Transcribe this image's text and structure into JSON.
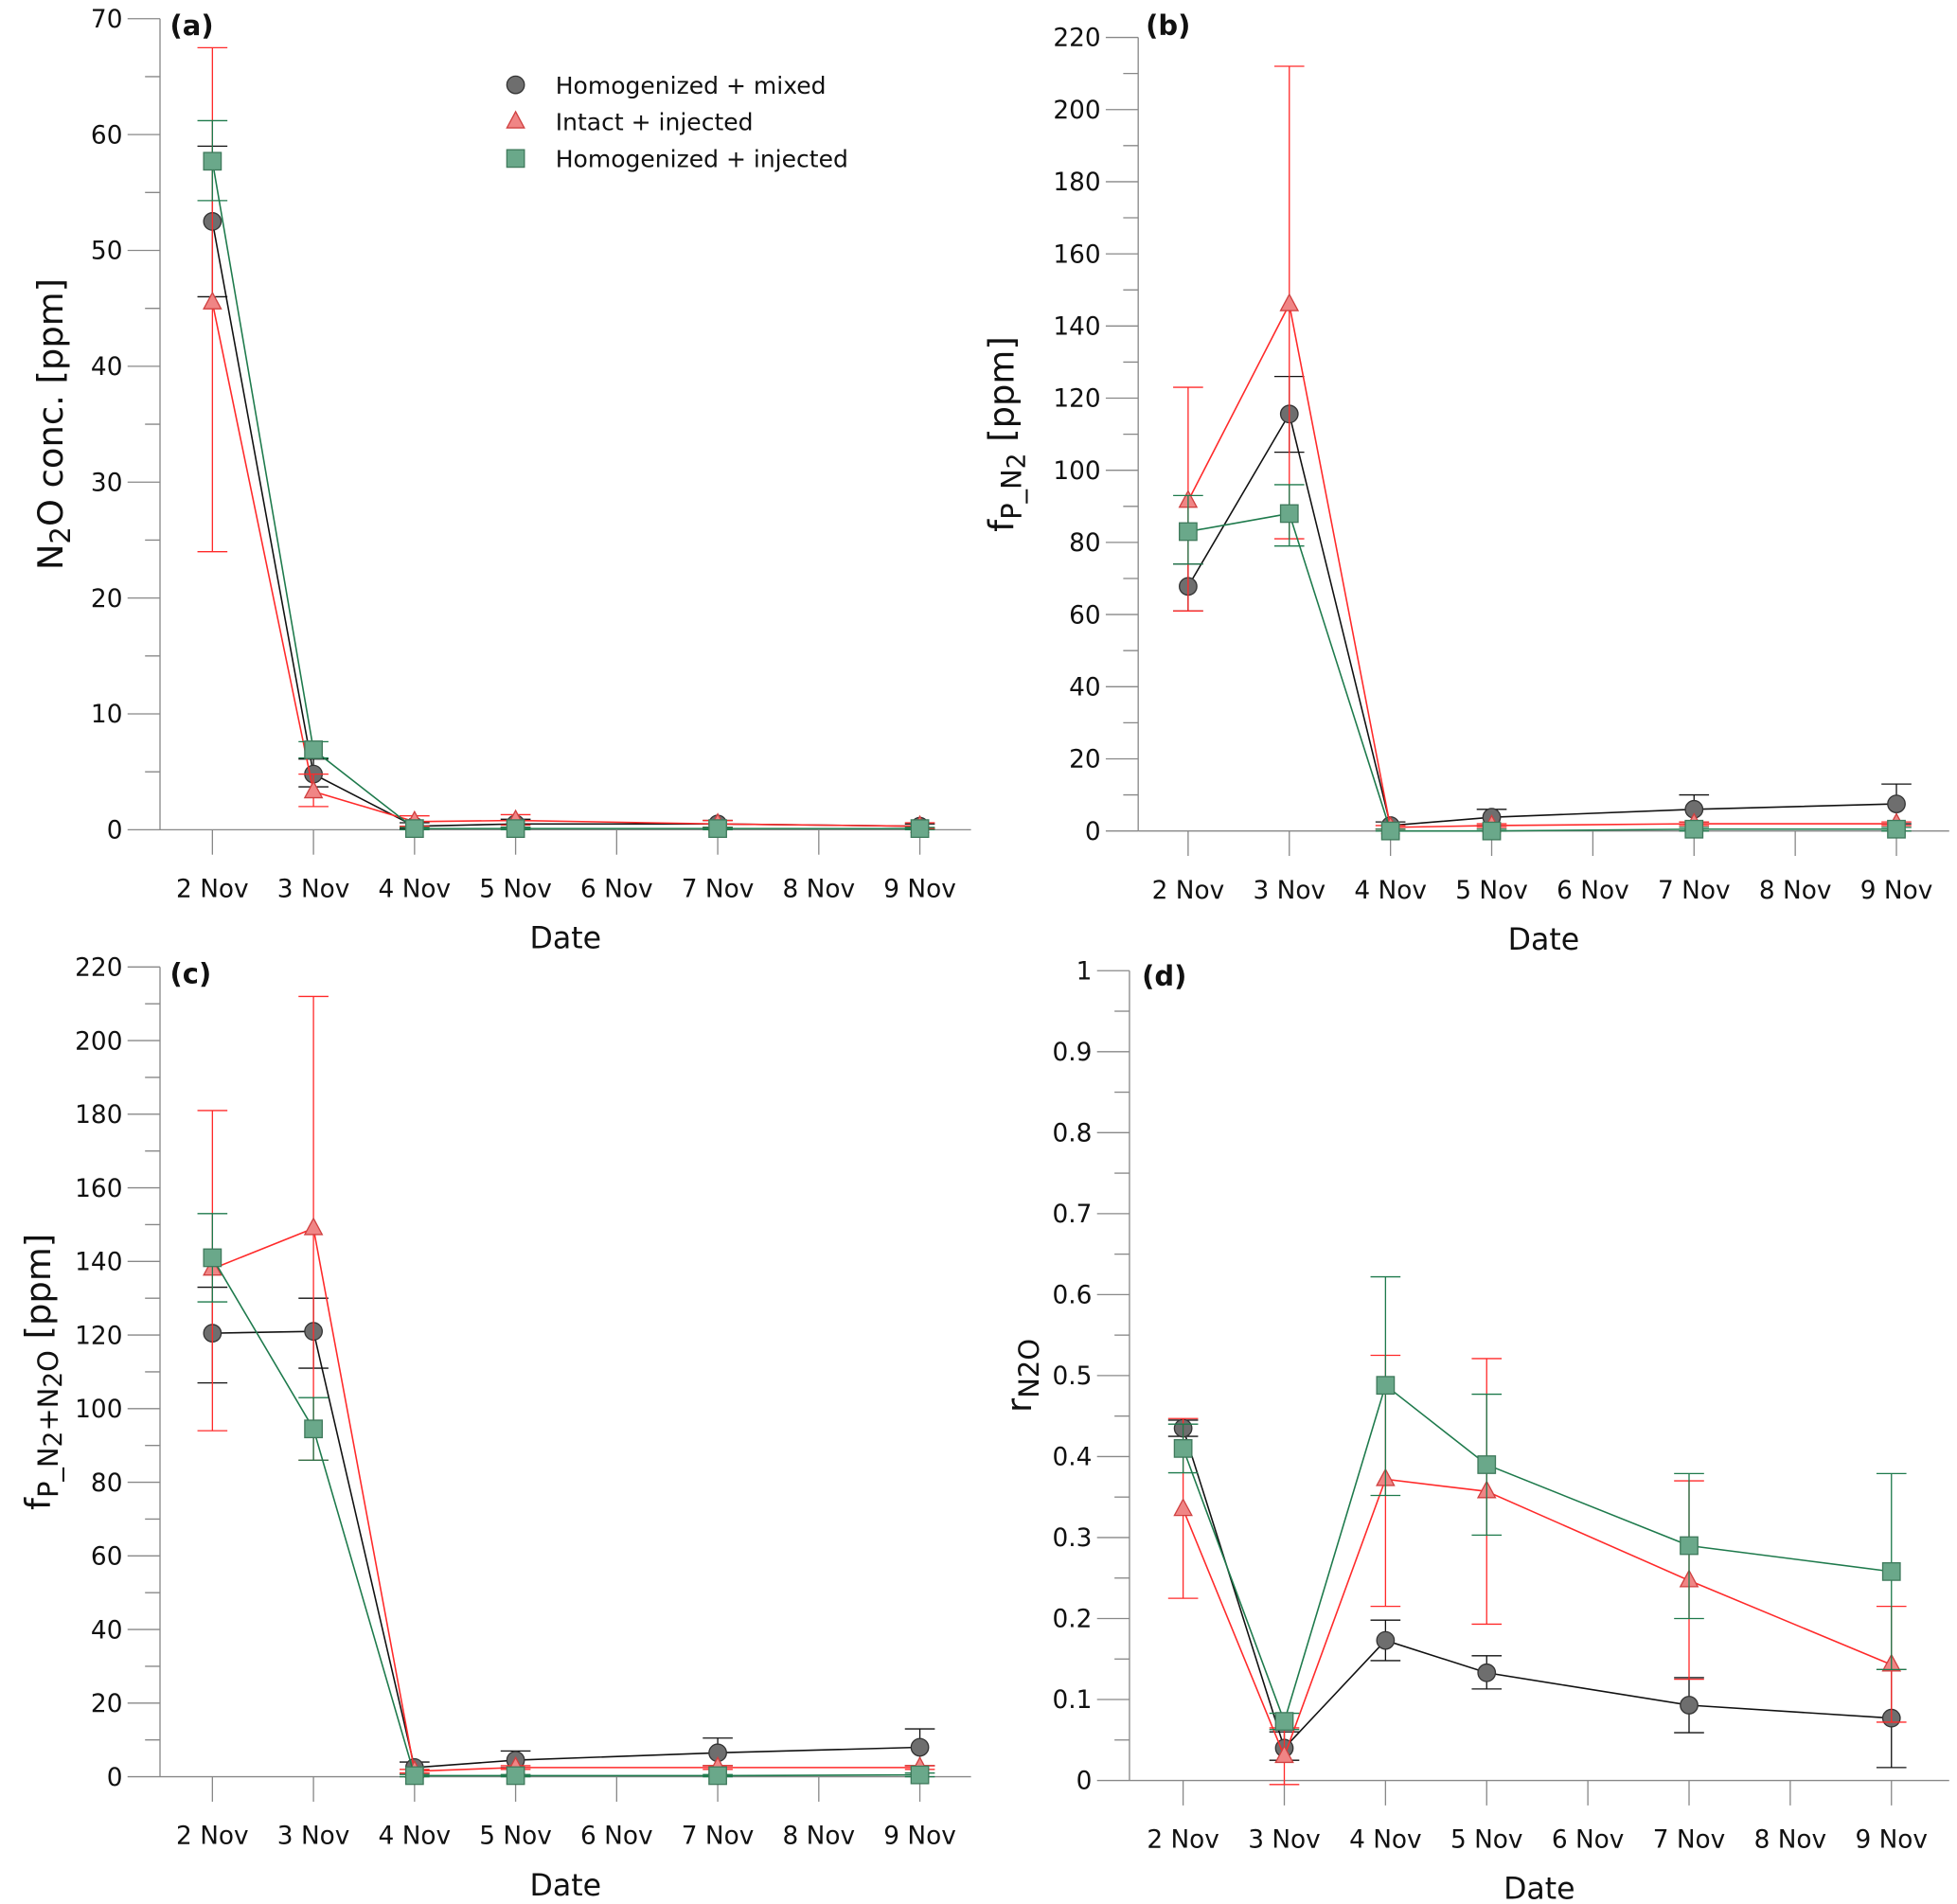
{
  "chart_data": {
    "type": "line",
    "categories": [
      "2 Nov",
      "3 Nov",
      "4 Nov",
      "5 Nov",
      "6 Nov",
      "7 Nov",
      "8 Nov",
      "9 Nov"
    ],
    "legend": {
      "placement": "top-center of panel (a)",
      "entries": [
        "Homogenized + mixed",
        "Intact + injected",
        "Homogenized + injected"
      ]
    },
    "colors": {
      "mixed": {
        "fill": "#6e6e6e",
        "stroke": "#333333",
        "line": "#111111"
      },
      "intact": {
        "fill": "#f08585",
        "stroke": "#d04040",
        "line": "#ff2a2a"
      },
      "hinj": {
        "fill": "#6aa88a",
        "stroke": "#3f7a5c",
        "line": "#1e7a4c"
      }
    },
    "panels": [
      {
        "label": "(a)",
        "xlabel": "Date",
        "ylabel": [
          {
            "t": "N"
          },
          {
            "t": "2",
            "sub": true
          },
          {
            "t": "O conc. [ppm]"
          }
        ],
        "ylim": [
          0,
          70
        ],
        "ymajor": 10,
        "yminor": 5,
        "yticks": [
          "0",
          "10",
          "20",
          "30",
          "40",
          "50",
          "60",
          "70"
        ],
        "show_legend": true,
        "series": [
          {
            "key": "mixed",
            "name": "Homogenized + mixed",
            "marker": "circle",
            "values": [
              52.5,
              4.8,
              0.3,
              0.5,
              null,
              0.5,
              null,
              0.3
            ],
            "err_low": [
              46,
              3.7,
              0.1,
              0.2,
              null,
              0.2,
              null,
              0.1
            ],
            "err_high": [
              59,
              6.1,
              0.6,
              0.9,
              null,
              0.8,
              null,
              0.5
            ]
          },
          {
            "key": "intact",
            "name": "Intact + injected",
            "marker": "triangle",
            "values": [
              45.5,
              3.3,
              0.7,
              0.8,
              null,
              0.5,
              null,
              0.3
            ],
            "err_low": [
              24,
              2.0,
              0.3,
              0.4,
              null,
              0.2,
              null,
              0.1
            ],
            "err_high": [
              67.5,
              4.8,
              1.2,
              1.3,
              null,
              0.8,
              null,
              0.6
            ]
          },
          {
            "key": "hinj",
            "name": "Homogenized + injected",
            "marker": "square",
            "values": [
              57.7,
              6.9,
              0.1,
              0.1,
              null,
              0.1,
              null,
              0.1
            ],
            "err_low": [
              54.3,
              6.2,
              0,
              0,
              null,
              0,
              null,
              0
            ],
            "err_high": [
              61.2,
              7.6,
              0.2,
              0.2,
              null,
              0.2,
              null,
              0.2
            ]
          }
        ]
      },
      {
        "label": "(b)",
        "xlabel": "Date",
        "ylabel": [
          {
            "t": "f"
          },
          {
            "t": "P_N",
            "sub": true
          },
          {
            "t": "2",
            "sub2": true
          },
          {
            "t": " [ppm]"
          }
        ],
        "ylim": [
          0,
          220
        ],
        "ymajor": 20,
        "yminor": 10,
        "yticks": [
          "0",
          "20",
          "40",
          "60",
          "80",
          "100",
          "120",
          "140",
          "160",
          "180",
          "200",
          "220"
        ],
        "series": [
          {
            "key": "mixed",
            "name": "Homogenized + mixed",
            "marker": "circle",
            "values": [
              67.8,
              115.6,
              1.5,
              3.8,
              null,
              6,
              null,
              7.5
            ],
            "err_low": [
              61,
              105,
              0.5,
              1.5,
              null,
              2.5,
              null,
              2
            ],
            "err_high": [
              74,
              126,
              2.5,
              6,
              null,
              10,
              null,
              13
            ]
          },
          {
            "key": "intact",
            "name": "Intact + injected",
            "marker": "triangle",
            "values": [
              91.5,
              146,
              1,
              1.5,
              null,
              2,
              null,
              2
            ],
            "err_low": [
              61,
              81,
              0.5,
              1,
              null,
              1.5,
              null,
              1.5
            ],
            "err_high": [
              123,
              212,
              1.5,
              2,
              null,
              2.5,
              null,
              2.5
            ]
          },
          {
            "key": "hinj",
            "name": "Homogenized + injected",
            "marker": "square",
            "values": [
              83,
              88,
              0,
              0,
              null,
              0.5,
              null,
              0.5
            ],
            "err_low": [
              74,
              79,
              0,
              0,
              null,
              0,
              null,
              0
            ],
            "err_high": [
              93,
              96,
              0.5,
              0.5,
              null,
              1,
              null,
              1
            ]
          }
        ]
      },
      {
        "label": "(c)",
        "xlabel": "Date",
        "ylabel": [
          {
            "t": "f"
          },
          {
            "t": "P_N",
            "sub": true
          },
          {
            "t": "2",
            "sub2": true
          },
          {
            "t": "+N",
            "sub": true
          },
          {
            "t": "2",
            "sub2": true
          },
          {
            "t": "O",
            "sub": true
          },
          {
            "t": " [ppm]"
          }
        ],
        "ylim": [
          0,
          220
        ],
        "ymajor": 20,
        "yminor": 10,
        "yticks": [
          "0",
          "20",
          "40",
          "60",
          "80",
          "100",
          "120",
          "140",
          "160",
          "180",
          "200",
          "220"
        ],
        "series": [
          {
            "key": "mixed",
            "name": "Homogenized + mixed",
            "marker": "circle",
            "values": [
              120.5,
              121,
              2.5,
              4.5,
              null,
              6.5,
              null,
              8
            ],
            "err_low": [
              107,
              111,
              1,
              2.5,
              null,
              3,
              null,
              3
            ],
            "err_high": [
              133,
              130,
              4,
              7,
              null,
              10.5,
              null,
              13
            ]
          },
          {
            "key": "intact",
            "name": "Intact + injected",
            "marker": "triangle",
            "values": [
              138,
              149,
              1.5,
              2.5,
              null,
              2.5,
              null,
              2.5
            ],
            "err_low": [
              94,
              86,
              1,
              2,
              null,
              2,
              null,
              2
            ],
            "err_high": [
              181,
              212,
              2,
              3,
              null,
              3,
              null,
              3
            ]
          },
          {
            "key": "hinj",
            "name": "Homogenized + injected",
            "marker": "square",
            "values": [
              141,
              94.5,
              0.3,
              0.3,
              null,
              0.3,
              null,
              0.5
            ],
            "err_low": [
              129,
              86,
              0,
              0,
              null,
              0,
              null,
              0
            ],
            "err_high": [
              153,
              103,
              0.6,
              0.6,
              null,
              0.6,
              null,
              1
            ]
          }
        ]
      },
      {
        "label": "(d)",
        "xlabel": "Date",
        "ylabel": [
          {
            "t": "r"
          },
          {
            "t": "N2O",
            "sub": true
          }
        ],
        "ylim": [
          0,
          1
        ],
        "ymajor": 0.1,
        "yminor": 0.05,
        "yticks": [
          "0",
          "0.1",
          "0.2",
          "0.3",
          "0.4",
          "0.5",
          "0.6",
          "0.7",
          "0.8",
          "0.9",
          "1"
        ],
        "series": [
          {
            "key": "mixed",
            "name": "Homogenized + mixed",
            "marker": "circle",
            "values": [
              0.435,
              0.04,
              0.173,
              0.133,
              null,
              0.093,
              null,
              0.077
            ],
            "err_low": [
              0.425,
              0.025,
              0.148,
              0.113,
              null,
              0.059,
              null,
              0.016
            ],
            "err_high": [
              0.445,
              0.06,
              0.198,
              0.154,
              null,
              0.127,
              null,
              0.137
            ]
          },
          {
            "key": "intact",
            "name": "Intact + injected",
            "marker": "triangle",
            "values": [
              0.335,
              0.03,
              0.372,
              0.357,
              null,
              0.247,
              null,
              0.143
            ],
            "err_low": [
              0.225,
              -0.005,
              0.215,
              0.193,
              null,
              0.125,
              null,
              0.072
            ],
            "err_high": [
              0.447,
              0.065,
              0.525,
              0.521,
              null,
              0.37,
              null,
              0.215
            ]
          },
          {
            "key": "hinj",
            "name": "Homogenized + injected",
            "marker": "square",
            "values": [
              0.41,
              0.073,
              0.488,
              0.39,
              null,
              0.29,
              null,
              0.258
            ],
            "err_low": [
              0.38,
              0.063,
              0.352,
              0.303,
              null,
              0.2,
              null,
              0.137
            ],
            "err_high": [
              0.44,
              0.083,
              0.622,
              0.477,
              null,
              0.379,
              null,
              0.379
            ]
          }
        ]
      }
    ]
  }
}
